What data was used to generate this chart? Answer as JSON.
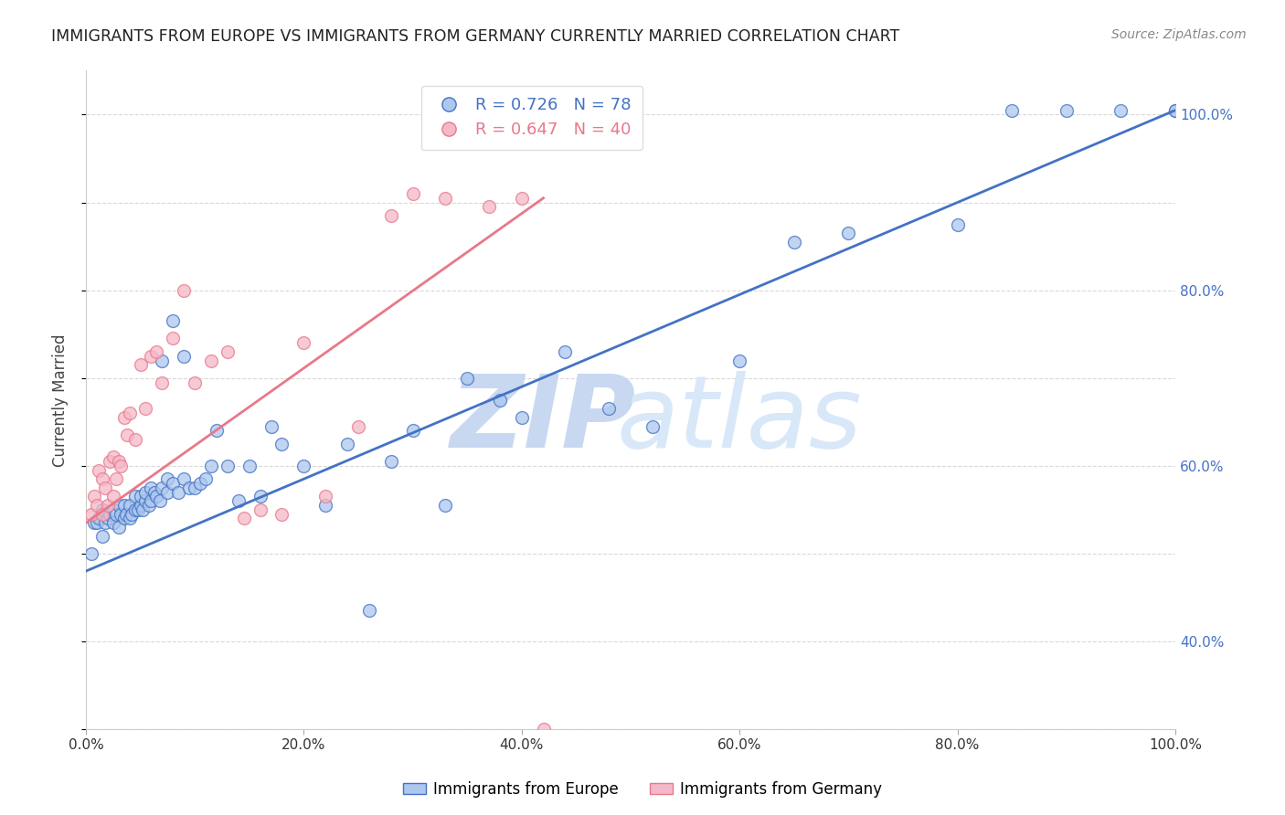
{
  "title": "IMMIGRANTS FROM EUROPE VS IMMIGRANTS FROM GERMANY CURRENTLY MARRIED CORRELATION CHART",
  "source": "Source: ZipAtlas.com",
  "ylabel": "Currently Married",
  "xlim": [
    0.0,
    1.0
  ],
  "ylim": [
    0.3,
    1.05
  ],
  "xticks": [
    0.0,
    0.2,
    0.4,
    0.6,
    0.8,
    1.0
  ],
  "yticks": [
    0.4,
    0.6,
    0.8,
    1.0
  ],
  "xticklabels": [
    "0.0%",
    "20.0%",
    "40.0%",
    "60.0%",
    "80.0%",
    "100.0%"
  ],
  "yticklabels_right": [
    "40.0%",
    "60.0%",
    "80.0%",
    "100.0%"
  ],
  "blue_R": 0.726,
  "blue_N": 78,
  "pink_R": 0.647,
  "pink_N": 40,
  "blue_color": "#adc8ee",
  "pink_color": "#f5b8c8",
  "blue_line_color": "#4472c4",
  "pink_line_color": "#e8788a",
  "title_color": "#222222",
  "axis_label_color": "#444444",
  "tick_color_right": "#4472c4",
  "grid_color": "#d0d0d0",
  "watermark_zip_color": "#c8d8f0",
  "watermark_atlas_color": "#d8e8f8",
  "background_color": "#ffffff",
  "legend_label_blue": "Immigrants from Europe",
  "legend_label_pink": "Immigrants from Germany",
  "blue_scatter_x": [
    0.005,
    0.008,
    0.01,
    0.012,
    0.015,
    0.015,
    0.018,
    0.02,
    0.022,
    0.025,
    0.025,
    0.028,
    0.03,
    0.03,
    0.032,
    0.035,
    0.035,
    0.037,
    0.04,
    0.04,
    0.042,
    0.045,
    0.045,
    0.048,
    0.05,
    0.05,
    0.052,
    0.055,
    0.055,
    0.058,
    0.06,
    0.06,
    0.063,
    0.065,
    0.068,
    0.07,
    0.07,
    0.075,
    0.075,
    0.08,
    0.08,
    0.085,
    0.09,
    0.09,
    0.095,
    0.1,
    0.105,
    0.11,
    0.115,
    0.12,
    0.13,
    0.14,
    0.15,
    0.16,
    0.17,
    0.18,
    0.2,
    0.22,
    0.24,
    0.26,
    0.28,
    0.3,
    0.33,
    0.35,
    0.38,
    0.4,
    0.44,
    0.48,
    0.52,
    0.6,
    0.65,
    0.7,
    0.8,
    0.85,
    0.9,
    0.95,
    1.0,
    1.0
  ],
  "blue_scatter_y": [
    0.5,
    0.535,
    0.535,
    0.54,
    0.52,
    0.55,
    0.535,
    0.54,
    0.545,
    0.535,
    0.55,
    0.545,
    0.53,
    0.555,
    0.545,
    0.54,
    0.555,
    0.545,
    0.54,
    0.555,
    0.545,
    0.55,
    0.565,
    0.55,
    0.555,
    0.565,
    0.55,
    0.56,
    0.57,
    0.555,
    0.56,
    0.575,
    0.57,
    0.565,
    0.56,
    0.575,
    0.72,
    0.57,
    0.585,
    0.58,
    0.765,
    0.57,
    0.585,
    0.725,
    0.575,
    0.575,
    0.58,
    0.585,
    0.6,
    0.64,
    0.6,
    0.56,
    0.6,
    0.565,
    0.645,
    0.625,
    0.6,
    0.555,
    0.625,
    0.435,
    0.605,
    0.64,
    0.555,
    0.7,
    0.675,
    0.655,
    0.73,
    0.665,
    0.645,
    0.72,
    0.855,
    0.865,
    0.875,
    1.005,
    1.005,
    1.005,
    1.005,
    1.005
  ],
  "pink_scatter_x": [
    0.005,
    0.008,
    0.01,
    0.012,
    0.015,
    0.015,
    0.018,
    0.02,
    0.022,
    0.025,
    0.025,
    0.028,
    0.03,
    0.032,
    0.035,
    0.038,
    0.04,
    0.045,
    0.05,
    0.055,
    0.06,
    0.065,
    0.07,
    0.08,
    0.09,
    0.1,
    0.115,
    0.13,
    0.145,
    0.16,
    0.18,
    0.2,
    0.22,
    0.25,
    0.28,
    0.3,
    0.33,
    0.37,
    0.4,
    0.42
  ],
  "pink_scatter_y": [
    0.545,
    0.565,
    0.555,
    0.595,
    0.545,
    0.585,
    0.575,
    0.555,
    0.605,
    0.565,
    0.61,
    0.585,
    0.605,
    0.6,
    0.655,
    0.635,
    0.66,
    0.63,
    0.715,
    0.665,
    0.725,
    0.73,
    0.695,
    0.745,
    0.8,
    0.695,
    0.72,
    0.73,
    0.54,
    0.55,
    0.545,
    0.74,
    0.565,
    0.645,
    0.885,
    0.91,
    0.905,
    0.895,
    0.905,
    0.3
  ],
  "blue_line_x": [
    0.0,
    1.0
  ],
  "blue_line_y": [
    0.48,
    1.005
  ],
  "pink_line_x": [
    0.0,
    0.42
  ],
  "pink_line_y": [
    0.535,
    0.905
  ]
}
